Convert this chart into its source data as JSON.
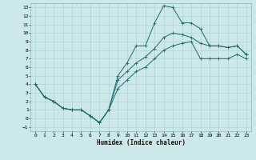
{
  "xlabel": "Humidex (Indice chaleur)",
  "bg_color": "#cce8ea",
  "grid_color": "#aacfd2",
  "line_color": "#1a6b6b",
  "xlim": [
    -0.5,
    23.5
  ],
  "ylim": [
    -1.5,
    13.5
  ],
  "xticks": [
    0,
    1,
    2,
    3,
    4,
    5,
    6,
    7,
    8,
    9,
    10,
    11,
    12,
    13,
    14,
    15,
    16,
    17,
    18,
    19,
    20,
    21,
    22,
    23
  ],
  "yticks": [
    -1,
    0,
    1,
    2,
    3,
    4,
    5,
    6,
    7,
    8,
    9,
    10,
    11,
    12,
    13
  ],
  "line1_x": [
    0,
    1,
    2,
    3,
    4,
    5,
    6,
    7,
    8,
    9,
    10,
    11,
    12,
    13,
    14,
    15,
    16,
    17,
    18,
    19,
    20,
    21,
    22,
    23
  ],
  "line1_y": [
    4.0,
    2.5,
    2.0,
    1.2,
    1.0,
    1.0,
    0.3,
    -0.5,
    1.0,
    5.0,
    6.5,
    8.5,
    8.5,
    11.2,
    13.2,
    13.0,
    11.2,
    11.2,
    10.5,
    8.5,
    8.5,
    8.3,
    8.5,
    7.5
  ],
  "line2_x": [
    0,
    1,
    2,
    3,
    4,
    5,
    6,
    7,
    8,
    9,
    10,
    11,
    12,
    13,
    14,
    15,
    16,
    17,
    18,
    19,
    20,
    21,
    22,
    23
  ],
  "line2_y": [
    4.0,
    2.5,
    2.0,
    1.2,
    1.0,
    1.0,
    0.3,
    -0.5,
    1.0,
    4.5,
    5.5,
    6.5,
    7.2,
    8.2,
    9.5,
    10.0,
    9.8,
    9.5,
    8.8,
    8.5,
    8.5,
    8.3,
    8.5,
    7.5
  ],
  "line3_x": [
    0,
    1,
    2,
    3,
    4,
    5,
    6,
    7,
    8,
    9,
    10,
    11,
    12,
    13,
    14,
    15,
    16,
    17,
    18,
    19,
    20,
    21,
    22,
    23
  ],
  "line3_y": [
    4.0,
    2.5,
    2.0,
    1.2,
    1.0,
    1.0,
    0.3,
    -0.5,
    1.0,
    3.5,
    4.5,
    5.5,
    6.0,
    7.0,
    8.0,
    8.5,
    8.8,
    9.0,
    7.0,
    7.0,
    7.0,
    7.0,
    7.5,
    7.0
  ],
  "tick_fontsize": 4.5,
  "xlabel_fontsize": 5.5,
  "lw": 0.7,
  "ms": 2.5
}
